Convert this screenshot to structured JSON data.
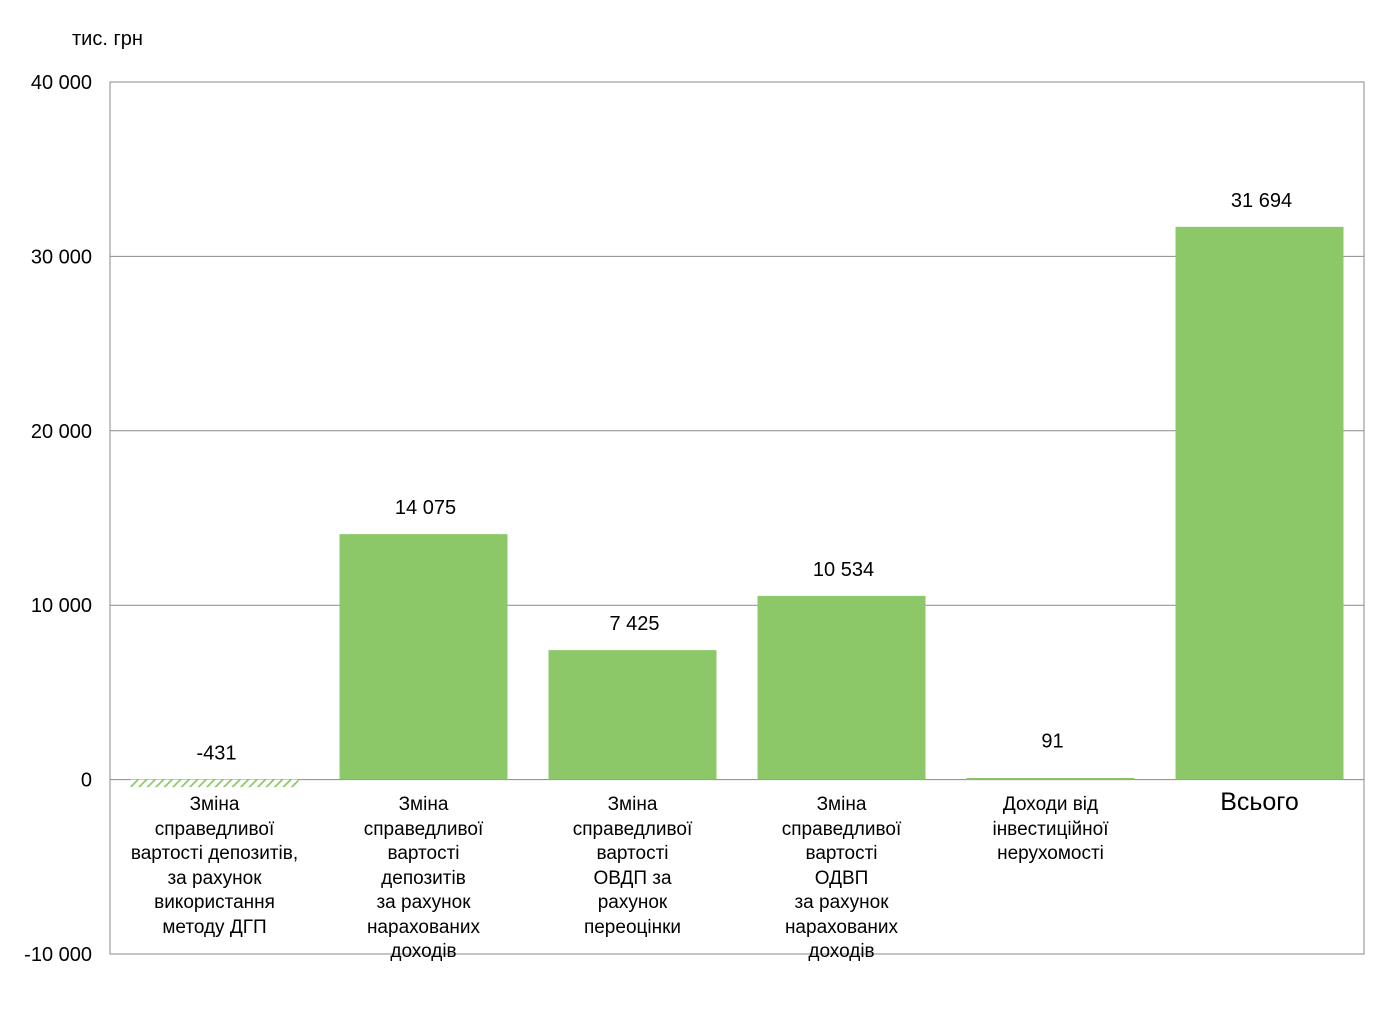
{
  "chart_data": {
    "type": "bar",
    "unit_label": "тис. грн",
    "ylim": [
      -10000,
      40000
    ],
    "yticks": [
      40000,
      30000,
      20000,
      10000,
      0,
      -10000
    ],
    "ytick_labels": [
      "40 000",
      "30 000",
      "20 000",
      "10 000",
      "0",
      "-10 000"
    ],
    "grid": true,
    "categories": [
      "Зміна\nсправедливої\nвартості депозитів,\nза рахунок\nвикористання\nметоду ДГП",
      "Зміна\nсправедливої\nвартості\nдепозитів\nза рахунок\nнарахованих\nдоходів",
      "Зміна\nсправедливої\nвартості\nОВДП  за\nрахунок\nпереоцінки",
      "Зміна\nсправедливої\nвартості\nОДВП\nза рахунок\nнарахованих\nдоходів",
      "Доходи від\nінвестиційної\nнерухомості",
      "Всього"
    ],
    "values": [
      -431,
      14075,
      7425,
      10534,
      91,
      31694
    ],
    "value_labels": [
      "-431",
      "14 075",
      "7 425",
      "10 534",
      "91",
      "31 694"
    ],
    "bar_color": "#8cc868",
    "negative_style": "hatched"
  }
}
